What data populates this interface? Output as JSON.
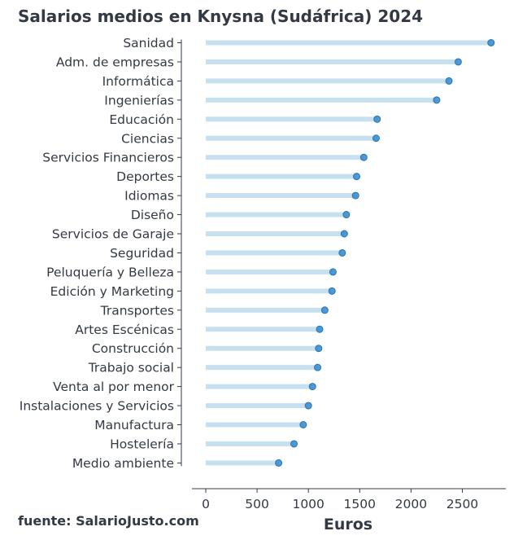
{
  "chart_data": {
    "type": "dot-bar",
    "title": "Salarios medios en Knysna (Sudáfrica) 2024",
    "xlabel": "Euros",
    "ylabel": "",
    "xlim": [
      0,
      2900
    ],
    "xticks": [
      0,
      500,
      1000,
      1500,
      2000,
      2500
    ],
    "grid": false,
    "legend": "none",
    "categories": [
      "Sanidad",
      "Adm. de empresas",
      "Informática",
      "Ingenierías",
      "Educación",
      "Ciencias",
      "Servicios Financieros",
      "Deportes",
      "Idiomas",
      "Diseño",
      "Servicios de Garaje",
      "Seguridad",
      "Peluquería y Belleza",
      "Edición y Marketing",
      "Transportes",
      "Artes Escénicas",
      "Construcción",
      "Trabajo social",
      "Venta al por menor",
      "Instalaciones y Servicios",
      "Manufactura",
      "Hostelería",
      "Medio ambiente"
    ],
    "values": [
      2780,
      2460,
      2370,
      2250,
      1670,
      1660,
      1540,
      1470,
      1460,
      1370,
      1350,
      1330,
      1240,
      1230,
      1160,
      1110,
      1100,
      1090,
      1040,
      1000,
      950,
      860,
      710
    ]
  },
  "colors": {
    "bar": "#c6e0f0",
    "dot": "#3a8fd0",
    "dot_edge": "#2b73b0",
    "axis": "#333a44"
  },
  "source": "fuente: SalarioJusto.com"
}
